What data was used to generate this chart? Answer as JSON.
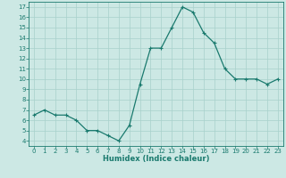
{
  "x": [
    0,
    1,
    2,
    3,
    4,
    5,
    6,
    7,
    8,
    9,
    10,
    11,
    12,
    13,
    14,
    15,
    16,
    17,
    18,
    19,
    20,
    21,
    22,
    23
  ],
  "y": [
    6.5,
    7.0,
    6.5,
    6.5,
    6.0,
    5.0,
    5.0,
    4.5,
    4.0,
    5.5,
    9.5,
    13.0,
    13.0,
    15.0,
    17.0,
    16.5,
    14.5,
    13.5,
    11.0,
    10.0,
    10.0,
    10.0,
    9.5,
    10.0
  ],
  "line_color": "#1a7a6e",
  "marker": "+",
  "marker_size": 3,
  "marker_linewidth": 0.8,
  "xlabel": "Humidex (Indice chaleur)",
  "xlim": [
    -0.5,
    23.5
  ],
  "ylim": [
    3.5,
    17.5
  ],
  "yticks": [
    4,
    5,
    6,
    7,
    8,
    9,
    10,
    11,
    12,
    13,
    14,
    15,
    16,
    17
  ],
  "xticks": [
    0,
    1,
    2,
    3,
    4,
    5,
    6,
    7,
    8,
    9,
    10,
    11,
    12,
    13,
    14,
    15,
    16,
    17,
    18,
    19,
    20,
    21,
    22,
    23
  ],
  "bg_color": "#cce8e4",
  "grid_color": "#a8d0cb",
  "line_width": 0.9
}
